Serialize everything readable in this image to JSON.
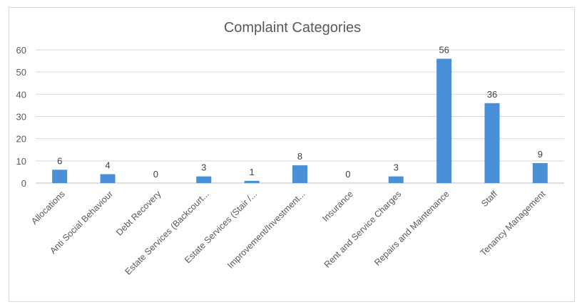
{
  "chart_data": {
    "type": "bar",
    "title": "Complaint Categories",
    "categories": [
      "Allocations",
      "Anti Social Behaviour",
      "Debt Recovery",
      "Estate Services (Backcourt...",
      "Estate Services (Stair /...",
      "Improvement/Investment...",
      "Insurance",
      "Rent and Service Charges",
      "Repairs and Maintenance",
      "Staff",
      "Tenancy Management"
    ],
    "values": [
      6,
      4,
      0,
      3,
      1,
      8,
      0,
      3,
      56,
      36,
      9
    ],
    "ylim": [
      0,
      60
    ],
    "yticks": [
      0,
      10,
      20,
      30,
      40,
      50,
      60
    ],
    "xlabel": "",
    "ylabel": "",
    "grid": true,
    "legend": "none",
    "data_labels": true,
    "colors": {
      "bar": "#4a90d9",
      "grid": "#d9d9d9",
      "axis": "#bfbfbf",
      "text": "#595959"
    }
  }
}
